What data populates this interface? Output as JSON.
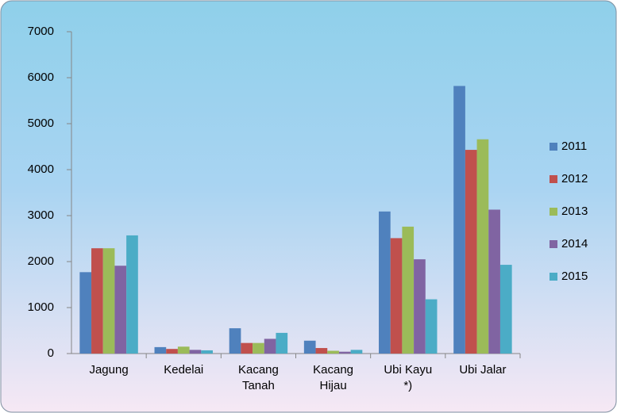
{
  "chart_data": {
    "type": "bar",
    "categories": [
      "Jagung",
      "Kedelai",
      "Kacang Tanah",
      "Kacang Hijau",
      "Ubi Kayu *)",
      "Ubi Jalar"
    ],
    "series": [
      {
        "name": "2011",
        "color": "#4f81bd",
        "values": [
          1770,
          140,
          550,
          280,
          3090,
          5820
        ]
      },
      {
        "name": "2012",
        "color": "#c0504d",
        "values": [
          2290,
          100,
          230,
          120,
          2510,
          4430
        ]
      },
      {
        "name": "2013",
        "color": "#9bbb59",
        "values": [
          2290,
          150,
          230,
          60,
          2760,
          4660
        ]
      },
      {
        "name": "2014",
        "color": "#8064a2",
        "values": [
          1910,
          80,
          320,
          40,
          2050,
          3130
        ]
      },
      {
        "name": "2015",
        "color": "#4bacc6",
        "values": [
          2570,
          70,
          450,
          80,
          1180,
          1930
        ]
      }
    ],
    "ylim": [
      0,
      7000
    ],
    "yticks": [
      0,
      1000,
      2000,
      3000,
      4000,
      5000,
      6000,
      7000
    ],
    "grid": false,
    "legend": "right"
  }
}
